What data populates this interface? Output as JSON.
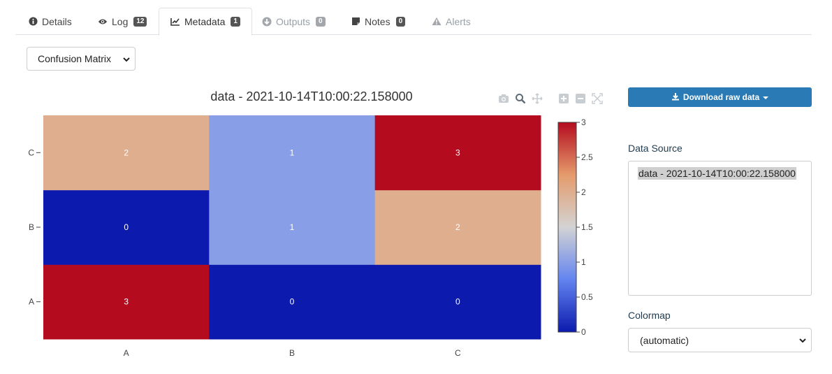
{
  "tabs": [
    {
      "label": "Details",
      "icon": "info-circle-icon",
      "badge": null,
      "state": "normal"
    },
    {
      "label": "Log",
      "icon": "eye-icon",
      "badge": "12",
      "state": "normal"
    },
    {
      "label": "Metadata",
      "icon": "chart-line-icon",
      "badge": "1",
      "state": "active"
    },
    {
      "label": "Outputs",
      "icon": "download-circle-icon",
      "badge": "0",
      "state": "disabled"
    },
    {
      "label": "Notes",
      "icon": "sticky-note-icon",
      "badge": "0",
      "state": "normal"
    },
    {
      "label": "Alerts",
      "icon": "warning-icon",
      "badge": null,
      "state": "disabled"
    }
  ],
  "plot_select": {
    "value": "Confusion Matrix"
  },
  "download_button": {
    "label": "Download raw data"
  },
  "data_source": {
    "label": "Data Source",
    "items": [
      "data - 2021-10-14T10:00:22.158000"
    ]
  },
  "colormap": {
    "label": "Colormap",
    "value": "(automatic)"
  },
  "chart_data": {
    "type": "heatmap",
    "title": "data - 2021-10-14T10:00:22.158000",
    "x_categories": [
      "A",
      "B",
      "C"
    ],
    "y_categories": [
      "A",
      "B",
      "C"
    ],
    "z": [
      [
        3,
        0,
        0
      ],
      [
        0,
        1,
        2
      ],
      [
        2,
        1,
        3
      ]
    ],
    "zlim": [
      0,
      3
    ],
    "colorbar_ticks": [
      "0",
      "0.5",
      "1",
      "1.5",
      "2",
      "2.5",
      "3"
    ],
    "colorscale": [
      "#0c1aad",
      "#6384f0",
      "#d3d3d3",
      "#e59b6c",
      "#b40b1f"
    ]
  }
}
